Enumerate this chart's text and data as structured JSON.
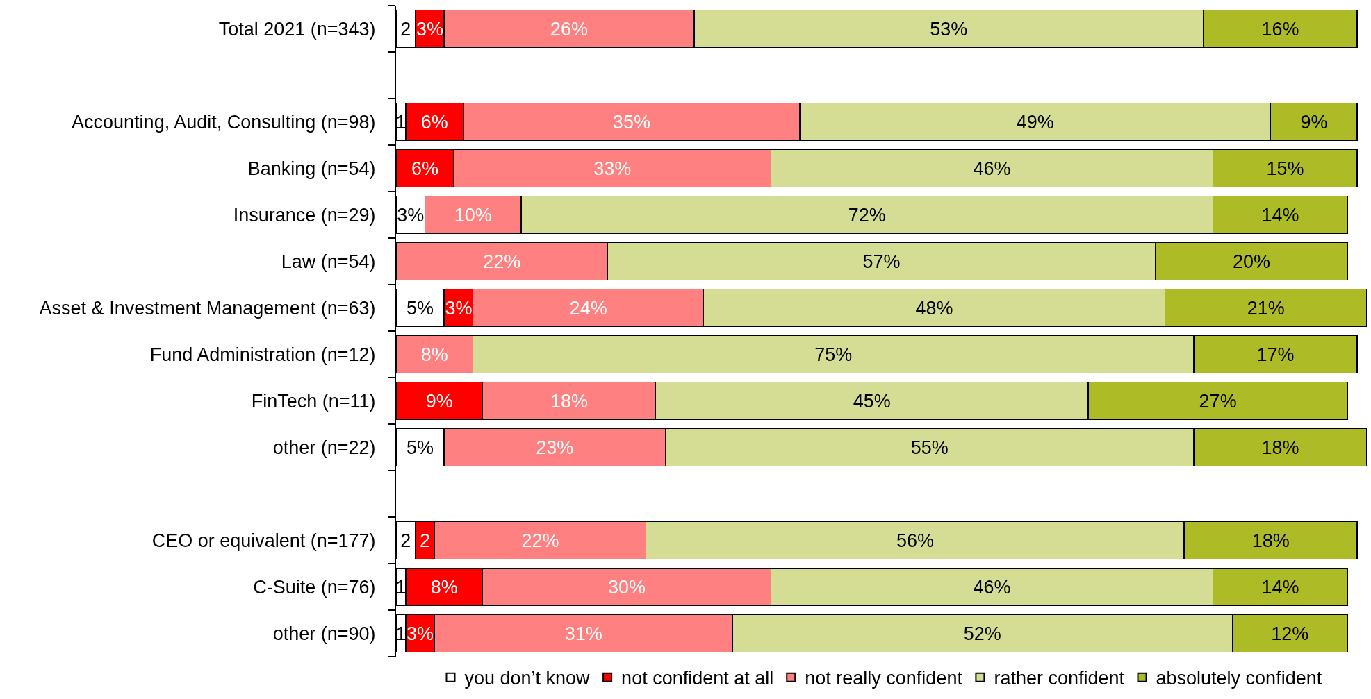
{
  "chart_data": {
    "type": "bar",
    "orientation": "horizontal",
    "stacked": true,
    "legend": "bottom",
    "tick_labels": "y",
    "categories": [
      "Total 2021 (n=343)",
      null,
      "Accounting, Audit, Consulting (n=98)",
      "Banking (n=54)",
      "Insurance (n=29)",
      "Law (n=54)",
      "Asset & Investment Management (n=63)",
      "Fund Administration (n=12)",
      "FinTech (n=11)",
      "other (n=22)",
      null,
      "CEO or equivalent (n=177)",
      "C-Suite (n=76)",
      "other (n=90)"
    ],
    "series": [
      {
        "name": "you don’t know",
        "color": "#ffffff",
        "values": [
          2,
          null,
          1,
          null,
          3,
          null,
          5,
          null,
          null,
          5,
          null,
          2,
          1,
          1
        ],
        "value_labels": [
          "2",
          null,
          "1",
          null,
          "3%",
          null,
          "5%",
          null,
          null,
          "5%",
          null,
          "2",
          "1",
          "1"
        ]
      },
      {
        "name": "not confident at all",
        "color": "#ff0000",
        "values": [
          3,
          null,
          6,
          6,
          null,
          null,
          3,
          null,
          9,
          null,
          null,
          2,
          8,
          3
        ],
        "value_labels": [
          "3%",
          null,
          "6%",
          "6%",
          null,
          null,
          "3%",
          null,
          "9%",
          null,
          null,
          "2",
          "8%",
          "3%"
        ]
      },
      {
        "name": "not really confident",
        "color": "#ff8080",
        "values": [
          26,
          null,
          35,
          33,
          10,
          22,
          24,
          8,
          18,
          23,
          null,
          22,
          30,
          31
        ],
        "value_labels": [
          "26%",
          null,
          "35%",
          "33%",
          "10%",
          "22%",
          "24%",
          "8%",
          "18%",
          "23%",
          null,
          "22%",
          "30%",
          "31%"
        ]
      },
      {
        "name": "rather confident",
        "color": "#d5dd95",
        "values": [
          53,
          null,
          49,
          46,
          72,
          57,
          48,
          75,
          45,
          55,
          null,
          56,
          46,
          52
        ],
        "value_labels": [
          "53%",
          null,
          "49%",
          "46%",
          "72%",
          "57%",
          "48%",
          "75%",
          "45%",
          "55%",
          null,
          "56%",
          "46%",
          "52%"
        ]
      },
      {
        "name": "absolutely confident",
        "color": "#adbb26",
        "values": [
          16,
          null,
          9,
          15,
          14,
          20,
          21,
          17,
          27,
          18,
          null,
          18,
          14,
          12
        ],
        "value_labels": [
          "16%",
          null,
          "9%",
          "15%",
          "14%",
          "20%",
          "21%",
          "17%",
          "27%",
          "18%",
          null,
          "18%",
          "14%",
          "12%"
        ]
      }
    ]
  }
}
